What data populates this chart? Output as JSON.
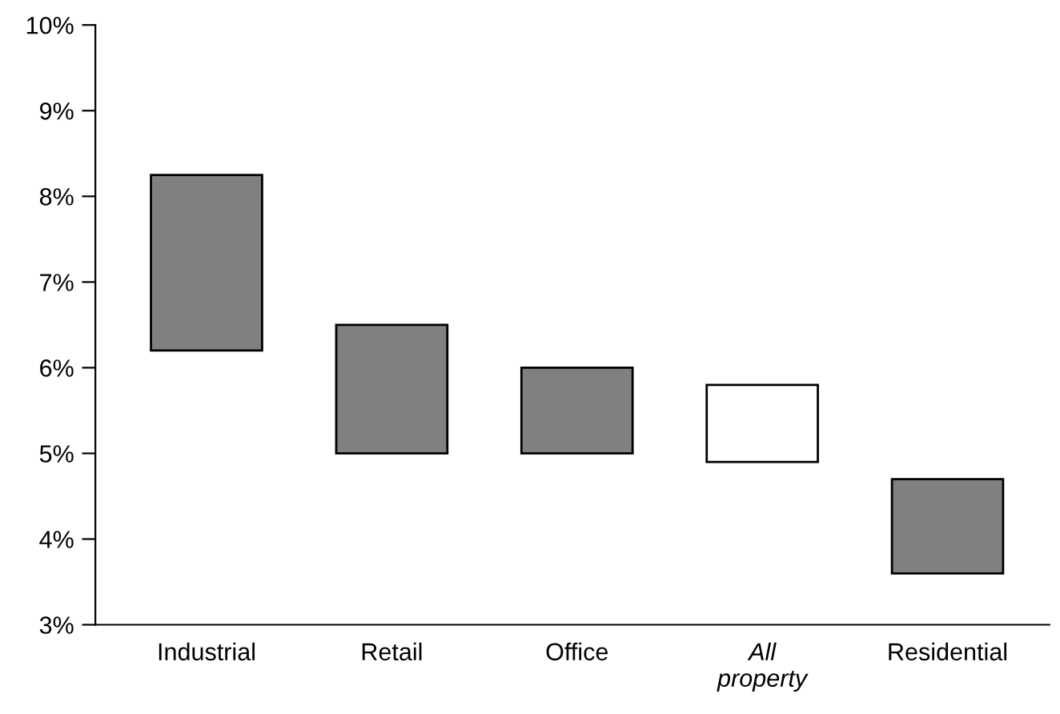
{
  "chart_data": {
    "type": "bar",
    "categories": [
      "Industrial",
      "Retail",
      "Office",
      "All\nproperty",
      "Residential"
    ],
    "base": [
      6.2,
      5.0,
      5.0,
      4.9,
      3.6
    ],
    "values": [
      2.05,
      1.5,
      1.0,
      0.9,
      1.1
    ],
    "colors": [
      "#808080",
      "#808080",
      "#808080",
      "#ffffff",
      "#808080"
    ],
    "ylim": [
      3,
      10
    ],
    "yticks": [
      {
        "value": 3,
        "label": "3%"
      },
      {
        "value": 4,
        "label": "4%"
      },
      {
        "value": 5,
        "label": "5%"
      },
      {
        "value": 6,
        "label": "6%"
      },
      {
        "value": 7,
        "label": "7%"
      },
      {
        "value": 8,
        "label": "8%"
      },
      {
        "value": 9,
        "label": "9%"
      },
      {
        "value": 10,
        "label": "10%"
      }
    ],
    "grid": false,
    "legend": false
  }
}
